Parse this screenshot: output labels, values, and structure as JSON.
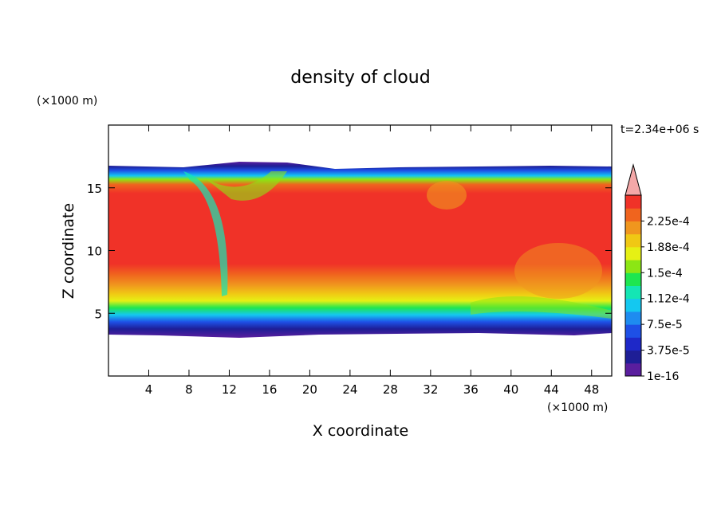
{
  "chart_data": {
    "type": "contour",
    "title": "density of cloud",
    "x_label": "X coordinate",
    "y_label": "Z coordinate",
    "x_unit": "(×1000 m)",
    "y_unit": "(×1000 m)",
    "time_label": "t=2.34e+06 s",
    "xlim": [
      0,
      50
    ],
    "ylim": [
      0,
      20
    ],
    "xticks": [
      4,
      8,
      12,
      16,
      20,
      24,
      28,
      32,
      36,
      40,
      44,
      48
    ],
    "yticks": [
      5,
      10,
      15
    ],
    "colorbar": {
      "lim": [
        0,
        0.0002625
      ],
      "ticks": [
        {
          "value": 1e-16,
          "label": "1e-16"
        },
        {
          "value": 3.75e-05,
          "label": "3.75e-5"
        },
        {
          "value": 7.5e-05,
          "label": "7.5e-5"
        },
        {
          "value": 0.0001125,
          "label": "1.12e-4"
        },
        {
          "value": 0.00015,
          "label": "1.5e-4"
        },
        {
          "value": 0.0001875,
          "label": "1.88e-4"
        },
        {
          "value": 0.000225,
          "label": "2.25e-4"
        }
      ],
      "colors": [
        "#5a1e9e",
        "#1e1e96",
        "#1e28c8",
        "#1e50e6",
        "#1e8cf0",
        "#14c8f0",
        "#14e6b4",
        "#1ee650",
        "#8ce614",
        "#e6f014",
        "#f0c814",
        "#f0961e",
        "#f0641e",
        "#f03228"
      ],
      "extend_color": "#f4a8a8"
    }
  }
}
